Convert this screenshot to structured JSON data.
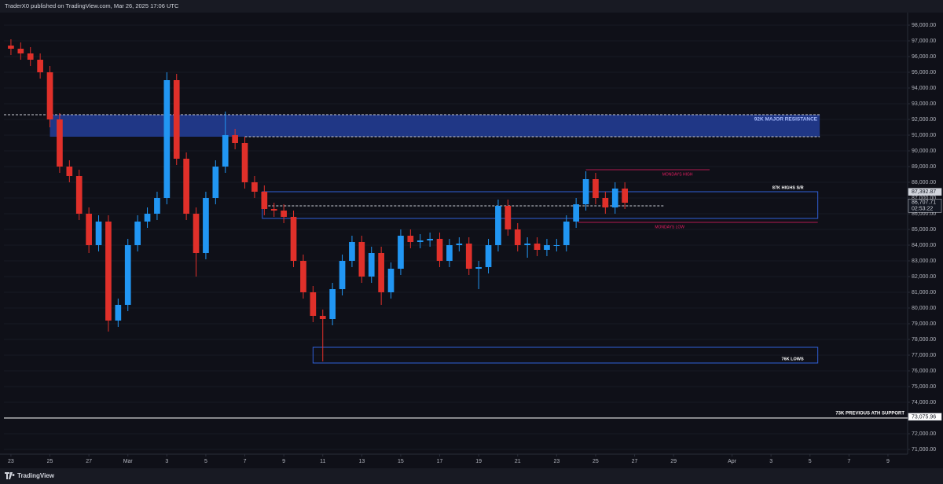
{
  "header": "TraderX0 published on TradingView.com, Mar 26, 2025 17:06 UTC",
  "footer": "TradingView",
  "chart_data": {
    "type": "candlestick",
    "up_color": "#2196f3",
    "down_color": "#e0302a",
    "x": [
      0,
      0.5,
      1,
      1.5,
      2,
      2.5,
      3,
      3.5,
      4,
      4.5,
      5,
      5.5,
      6,
      6.5,
      7,
      7.5,
      8,
      8.5,
      9,
      9.5,
      10,
      10.5,
      11,
      11.5,
      12,
      12.5,
      13,
      13.5,
      14,
      14.5,
      15,
      15.5,
      16,
      16.5,
      17,
      17.5,
      18,
      18.5,
      19,
      19.5,
      20,
      20.5,
      21,
      21.5,
      22,
      22.5,
      23,
      23.5,
      24,
      24.5,
      25,
      25.5,
      26,
      26.5,
      27,
      27.5,
      28,
      28.5,
      29,
      29.5,
      30,
      30.5,
      31,
      31.5
    ],
    "open": [
      96700,
      96500,
      96200,
      95800,
      95000,
      92000,
      89000,
      88400,
      86000,
      84000,
      85500,
      79200,
      80200,
      84000,
      85500,
      86000,
      87000,
      94500,
      89500,
      86000,
      83500,
      87000,
      89000,
      91000,
      90500,
      88000,
      87400,
      86300,
      86200,
      85800,
      83000,
      81000,
      79500,
      79300,
      81200,
      83000,
      84200,
      82000,
      83500,
      81000,
      82500,
      84600,
      84200,
      84300,
      84400,
      83000,
      84000,
      84100,
      82500,
      82600,
      84000,
      86500,
      85000,
      84000,
      84100,
      83700,
      84000,
      84000,
      85500,
      86600,
      88200,
      87000,
      86400,
      87600
    ],
    "high": [
      97100,
      96900,
      96600,
      96200,
      95400,
      92400,
      89400,
      88800,
      86400,
      85900,
      85900,
      80600,
      84400,
      85900,
      86400,
      87400,
      95000,
      94900,
      89900,
      86400,
      87400,
      89400,
      92500,
      91400,
      90900,
      88400,
      87800,
      86700,
      86600,
      86200,
      83400,
      81400,
      79900,
      81600,
      83400,
      84600,
      84600,
      83900,
      83900,
      82900,
      85000,
      85000,
      84700,
      84800,
      84800,
      84400,
      84500,
      84500,
      83000,
      84400,
      86900,
      86900,
      85400,
      84500,
      84500,
      84400,
      84400,
      85900,
      87000,
      88700,
      88600,
      87400,
      88000,
      88000
    ],
    "low": [
      96100,
      95800,
      95400,
      94600,
      91500,
      88600,
      88000,
      85600,
      83500,
      83600,
      78500,
      78800,
      79800,
      83600,
      85100,
      85600,
      86600,
      89100,
      85600,
      82000,
      83100,
      86600,
      88600,
      90100,
      87600,
      87000,
      85900,
      85800,
      85400,
      82600,
      80600,
      79100,
      76600,
      78900,
      80800,
      82600,
      81600,
      81600,
      80200,
      80600,
      82100,
      83800,
      83800,
      83900,
      82600,
      82600,
      83600,
      82100,
      81200,
      82200,
      83600,
      84600,
      83600,
      83200,
      83300,
      83300,
      83600,
      83600,
      85100,
      86200,
      86600,
      86000,
      86000,
      86300
    ],
    "close": [
      96500,
      96200,
      95800,
      95000,
      92000,
      89000,
      88400,
      86000,
      84000,
      85500,
      79200,
      80200,
      84000,
      85500,
      86000,
      87000,
      94500,
      89500,
      86000,
      83500,
      87000,
      89000,
      91000,
      90500,
      88000,
      87400,
      86300,
      86200,
      85800,
      83000,
      81000,
      79500,
      79300,
      81200,
      83000,
      84200,
      82000,
      83500,
      81000,
      82500,
      84600,
      84200,
      84300,
      84400,
      83000,
      84000,
      84100,
      82500,
      82600,
      84000,
      86500,
      85000,
      84000,
      84100,
      83700,
      84000,
      84000,
      85500,
      86600,
      88200,
      87000,
      86400,
      87600,
      86700
    ],
    "xlim": [
      -0.36,
      46.01
    ],
    "ylim": [
      70700,
      98800
    ],
    "xticks": [
      {
        "value": 0,
        "label": "23"
      },
      {
        "value": 2,
        "label": "25"
      },
      {
        "value": 4,
        "label": "27"
      },
      {
        "value": 6,
        "label": "Mar"
      },
      {
        "value": 8,
        "label": "3"
      },
      {
        "value": 10,
        "label": "5"
      },
      {
        "value": 12,
        "label": "7"
      },
      {
        "value": 14,
        "label": "9"
      },
      {
        "value": 16,
        "label": "11"
      },
      {
        "value": 18,
        "label": "13"
      },
      {
        "value": 20,
        "label": "15"
      },
      {
        "value": 22,
        "label": "17"
      },
      {
        "value": 24,
        "label": "19"
      },
      {
        "value": 26,
        "label": "21"
      },
      {
        "value": 28,
        "label": "23"
      },
      {
        "value": 30,
        "label": "25"
      },
      {
        "value": 32,
        "label": "27"
      },
      {
        "value": 34,
        "label": "29"
      },
      {
        "value": 37,
        "label": "Apr"
      },
      {
        "value": 39,
        "label": "3"
      },
      {
        "value": 41,
        "label": "5"
      },
      {
        "value": 43,
        "label": "7"
      },
      {
        "value": 45,
        "label": "9"
      }
    ],
    "yticks": [
      {
        "value": 71000,
        "label": "71,000.00"
      },
      {
        "value": 72000,
        "label": "72,000.00"
      },
      {
        "value": 73000,
        "label": "73,000.00"
      },
      {
        "value": 74000,
        "label": "74,000.00"
      },
      {
        "value": 75000,
        "label": "75,000.00"
      },
      {
        "value": 76000,
        "label": "76,000.00"
      },
      {
        "value": 77000,
        "label": "77,000.00"
      },
      {
        "value": 78000,
        "label": "78,000.00"
      },
      {
        "value": 79000,
        "label": "79,000.00"
      },
      {
        "value": 80000,
        "label": "80,000.00"
      },
      {
        "value": 81000,
        "label": "81,000.00"
      },
      {
        "value": 82000,
        "label": "82,000.00"
      },
      {
        "value": 83000,
        "label": "83,000.00"
      },
      {
        "value": 84000,
        "label": "84,000.00"
      },
      {
        "value": 85000,
        "label": "85,000.00"
      },
      {
        "value": 86000,
        "label": "86,000.00"
      },
      {
        "value": 87000,
        "label": "87,000.00"
      },
      {
        "value": 88000,
        "label": "88,000.00"
      },
      {
        "value": 89000,
        "label": "89,000.00"
      },
      {
        "value": 90000,
        "label": "90,000.00"
      },
      {
        "value": 91000,
        "label": "91,000.00"
      },
      {
        "value": 92000,
        "label": "92,000.00"
      },
      {
        "value": 93000,
        "label": "93,000.00"
      },
      {
        "value": 94000,
        "label": "94,000.00"
      },
      {
        "value": 95000,
        "label": "95,000.00"
      },
      {
        "value": 96000,
        "label": "96,000.00"
      },
      {
        "value": 97000,
        "label": "97,000.00"
      },
      {
        "value": 98000,
        "label": "98,000.00"
      }
    ],
    "zones": [
      {
        "label": "92K MAJOR RESISTANCE",
        "low": 90900,
        "high": 92300,
        "from": 2,
        "to": 41.5,
        "fill": "#223c92",
        "text_color": "#a9bdff"
      },
      {
        "label": "87K HIGHS S/R",
        "low": 85700,
        "high": 87400,
        "from": 12.9,
        "to": 41.4,
        "fill": "none",
        "text_color": "#ffffff"
      },
      {
        "label": "76K LOWS",
        "low": 76500,
        "high": 77500,
        "from": 15.5,
        "to": 41.4,
        "fill": "none",
        "text_color": "#ffffff"
      }
    ],
    "levels": [
      {
        "label": "MONDAYS HIGH",
        "value": 88800,
        "from": 29.5,
        "to": 35.85,
        "color": "#e91e63"
      },
      {
        "label": "MONDAYS LOW",
        "value": 85450,
        "from": 29.1,
        "to": 41.4,
        "color": "#e91e63"
      },
      {
        "label": "73K PREVIOUS ATH SUPPORT",
        "value": 73000,
        "from": -0.36,
        "to": 46.01,
        "color": "#ffffff"
      }
    ],
    "dashed_lines": [
      {
        "value": 86500,
        "from": 13.2,
        "to": 33.5
      }
    ],
    "price_labels": [
      {
        "value": 87392.87,
        "label": "87,392.87",
        "bg": "#d1d4dc",
        "fg": "#131722"
      },
      {
        "value": 86707.71,
        "label": "86,707.71",
        "countdown": "02:53:22",
        "bg": "#131722",
        "fg": "#d1d4dc"
      },
      {
        "value": 73075.96,
        "label": "73,075.96",
        "bg": "#ffffff",
        "fg": "#131722"
      }
    ]
  }
}
